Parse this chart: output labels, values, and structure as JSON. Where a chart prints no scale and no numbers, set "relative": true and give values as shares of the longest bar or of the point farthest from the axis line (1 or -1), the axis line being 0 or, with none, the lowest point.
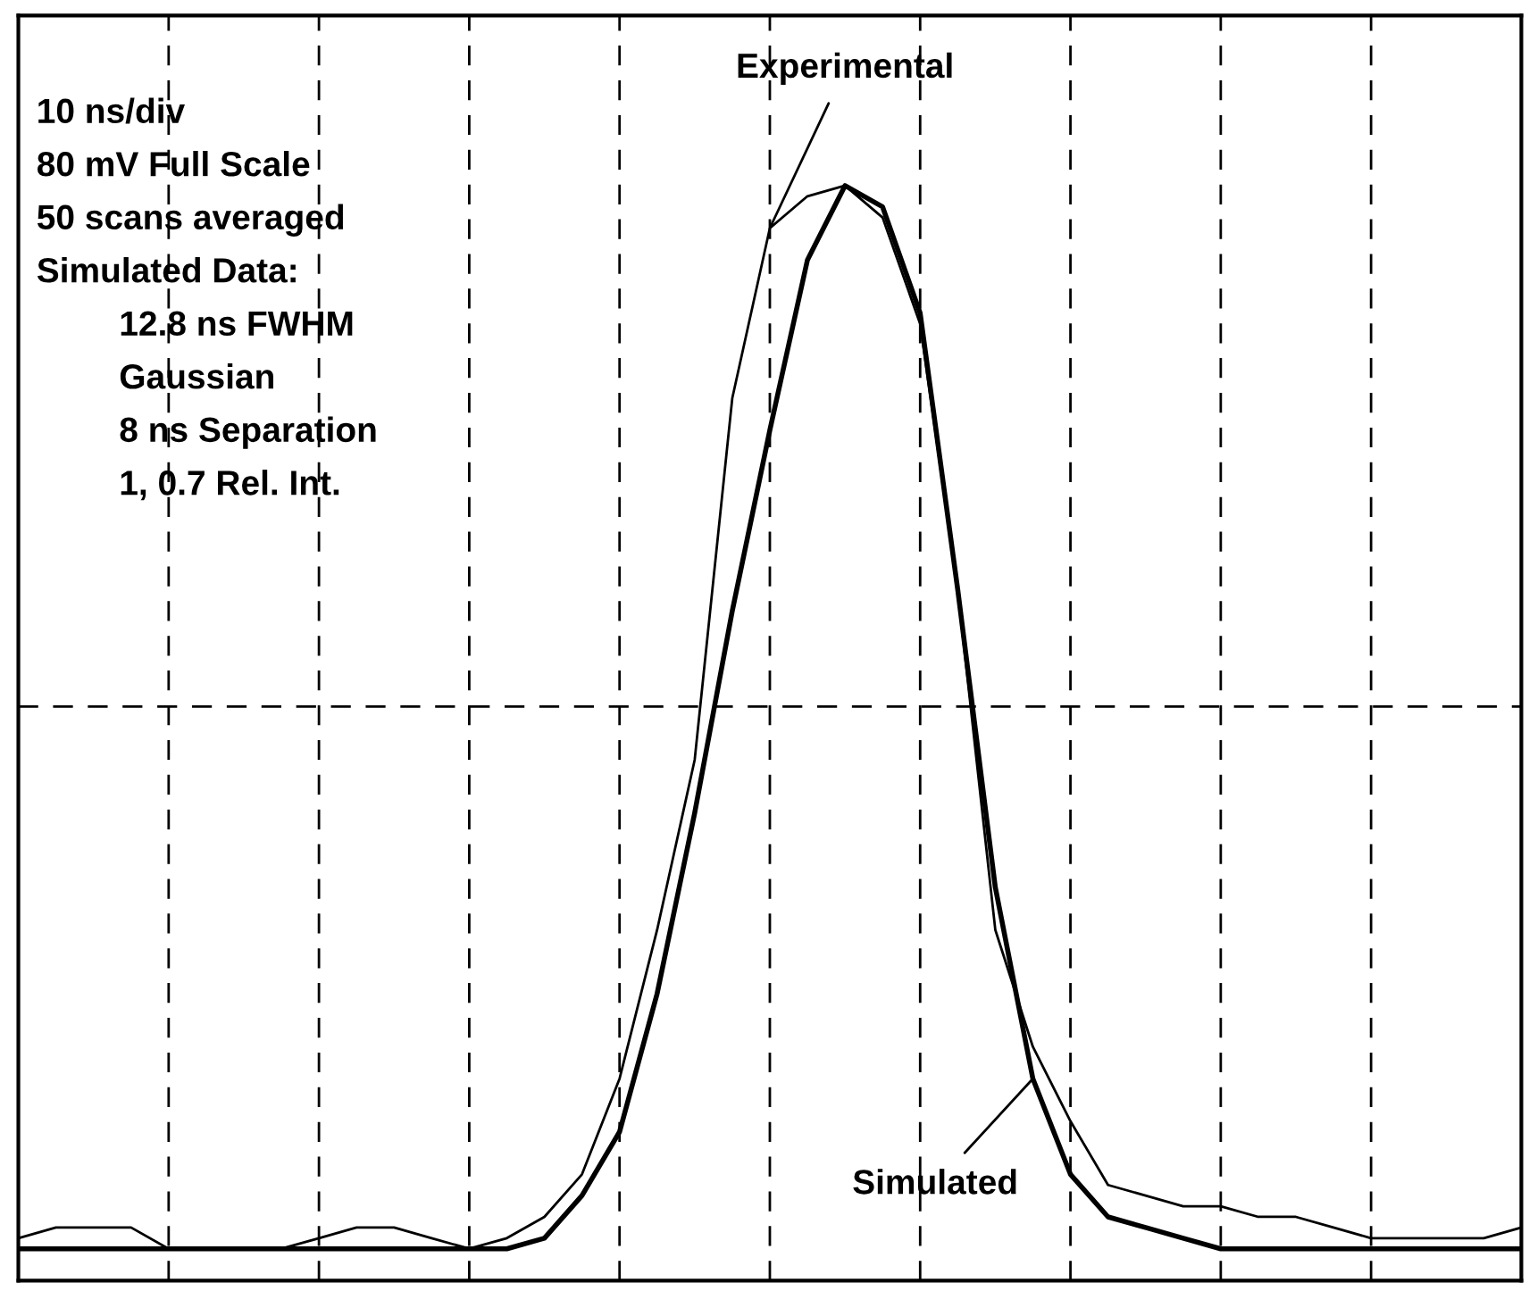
{
  "chart_data": {
    "type": "line",
    "relative": true,
    "grid": "x",
    "marker": "none",
    "line_style": "solid",
    "categories": [
      null,
      null,
      null,
      null,
      null,
      null,
      null,
      null,
      null,
      null,
      null,
      null,
      null,
      null,
      null,
      null,
      null,
      null,
      null,
      null,
      null,
      null,
      null,
      null,
      null,
      null,
      null,
      null,
      null,
      null,
      null,
      null,
      null,
      null,
      null,
      null,
      null,
      null,
      null,
      null,
      null
    ],
    "ref_lines": [
      {
        "axis": "y",
        "value": 0.51,
        "label": null,
        "color": "#000000",
        "line_style": "dashed"
      }
    ],
    "annotations": [
      "10 ns/div",
      "80 mV Full Scale",
      "50 scans averaged",
      "Simulated Data:",
      "12.8 ns FWHM",
      "Gaussian",
      "8 ns Separation",
      "1, 0.7 Rel. Int."
    ],
    "series": [
      {
        "name": "Experimental",
        "color": "#000000",
        "values": [
          0.01,
          0.02,
          0.02,
          0.02,
          0.0,
          0.0,
          0.0,
          0.0,
          0.01,
          0.02,
          0.02,
          0.01,
          0.0,
          0.01,
          0.03,
          0.07,
          0.16,
          0.3,
          0.46,
          0.8,
          0.96,
          0.99,
          1.0,
          0.97,
          0.87,
          0.62,
          0.3,
          0.19,
          0.12,
          0.06,
          0.05,
          0.04,
          0.04,
          0.03,
          0.03,
          0.02,
          0.01,
          0.01,
          0.01,
          0.01,
          0.02
        ]
      },
      {
        "name": "Simulated",
        "color": "#000000",
        "values": [
          0.0,
          0.0,
          0.0,
          0.0,
          0.0,
          0.0,
          0.0,
          0.0,
          0.0,
          0.0,
          0.0,
          0.0,
          0.0,
          0.0,
          0.01,
          0.05,
          0.11,
          0.24,
          0.41,
          0.6,
          0.77,
          0.93,
          1.0,
          0.98,
          0.88,
          0.62,
          0.34,
          0.16,
          0.07,
          0.03,
          0.02,
          0.01,
          0.0,
          0.0,
          0.0,
          0.0,
          0.0,
          0.0,
          0.0,
          0.0,
          0.0
        ]
      }
    ]
  }
}
